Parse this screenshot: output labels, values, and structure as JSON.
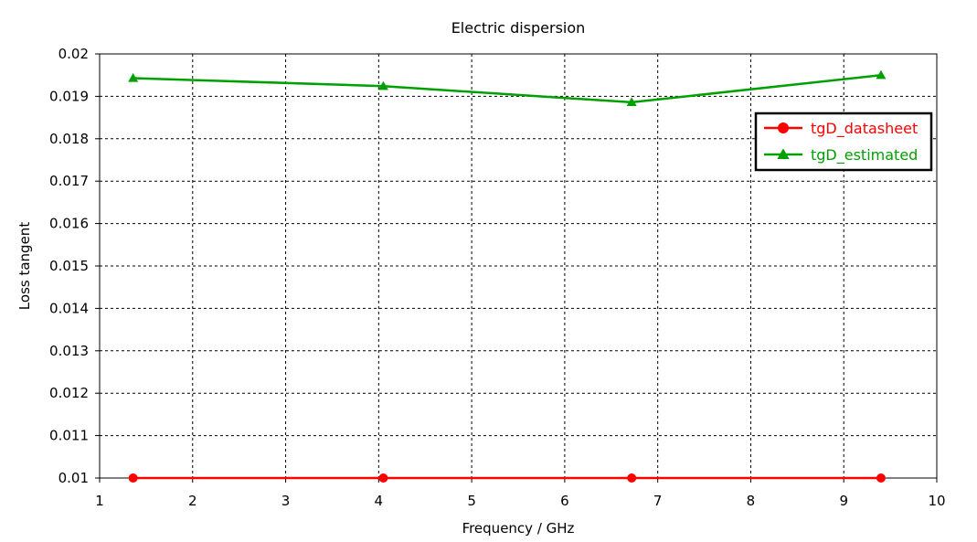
{
  "chart_data": {
    "type": "line",
    "title": "Electric dispersion",
    "xlabel": "Frequency / GHz",
    "ylabel": "Loss tangent",
    "xlim": [
      1,
      10
    ],
    "ylim": [
      0.01,
      0.02
    ],
    "x_ticks": [
      "1",
      "2",
      "3",
      "4",
      "5",
      "6",
      "7",
      "8",
      "9",
      "10"
    ],
    "y_ticks": [
      "0.01",
      "0.011",
      "0.012",
      "0.013",
      "0.014",
      "0.015",
      "0.016",
      "0.017",
      "0.018",
      "0.019",
      "0.02"
    ],
    "grid": true,
    "legend_position": "top-right",
    "series": [
      {
        "name": "tgD_datasheet",
        "color": "#ff0000",
        "marker": "circle",
        "x": [
          1.36,
          4.05,
          6.72,
          9.4
        ],
        "y": [
          0.01,
          0.01,
          0.01,
          0.01
        ]
      },
      {
        "name": "tgD_estimated",
        "color": "#00a000",
        "marker": "triangle",
        "x": [
          1.36,
          4.05,
          6.72,
          9.4
        ],
        "y": [
          0.01943,
          0.01924,
          0.01886,
          0.0195
        ]
      }
    ]
  }
}
